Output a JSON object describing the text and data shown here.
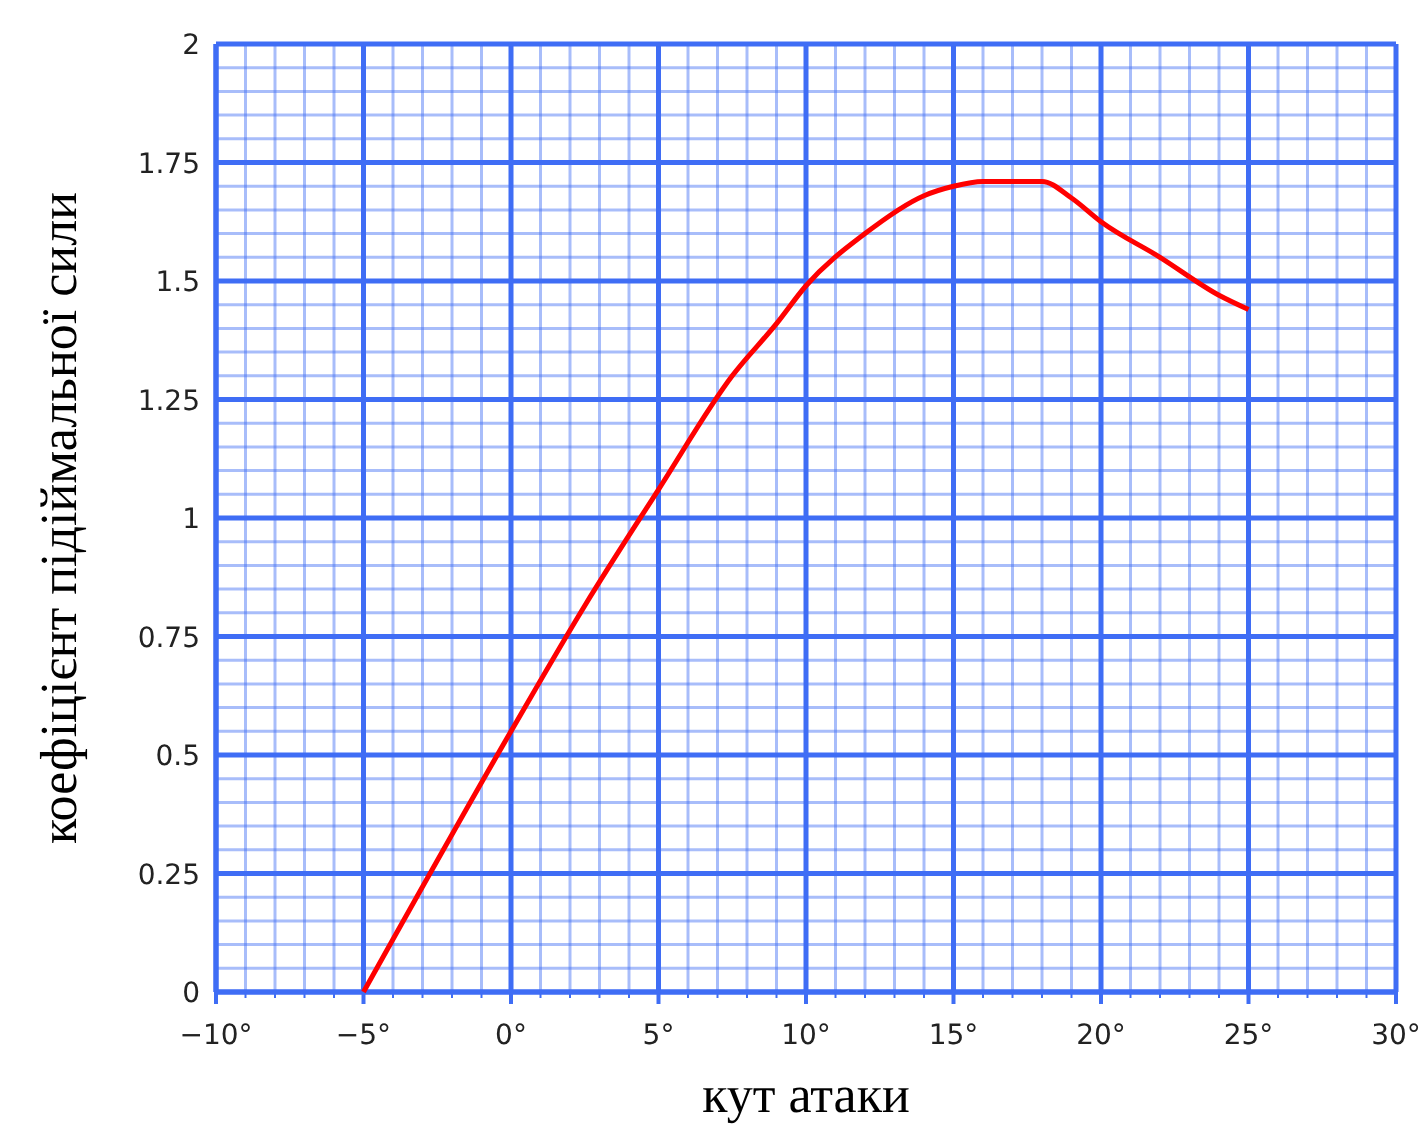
{
  "chart_data": {
    "type": "line",
    "xlabel": "кут атаки",
    "ylabel": "коефіцієнт підіймальної сили",
    "x": [
      -5,
      0,
      2.5,
      5,
      7.5,
      9,
      10,
      12,
      14,
      15,
      16,
      18,
      19,
      20,
      22,
      24,
      25
    ],
    "series": [
      {
        "color": "#ff0000",
        "values": [
          0,
          0.55,
          0.815,
          1.06,
          1.3,
          1.41,
          1.49,
          1.6,
          1.68,
          1.7,
          1.71,
          1.71,
          1.675,
          1.625,
          1.55,
          1.47,
          1.44
        ]
      }
    ],
    "xlim": [
      -10,
      30
    ],
    "ylim": [
      0,
      2
    ],
    "xticks": [
      {
        "value": -10,
        "label": "−10°"
      },
      {
        "value": -9,
        "label": null
      },
      {
        "value": -8,
        "label": null
      },
      {
        "value": -7,
        "label": null
      },
      {
        "value": -6,
        "label": null
      },
      {
        "value": -5,
        "label": "−5°"
      },
      {
        "value": -4,
        "label": null
      },
      {
        "value": -3,
        "label": null
      },
      {
        "value": -2,
        "label": null
      },
      {
        "value": -1,
        "label": null
      },
      {
        "value": 0,
        "label": "0°"
      },
      {
        "value": 1,
        "label": null
      },
      {
        "value": 2,
        "label": null
      },
      {
        "value": 3,
        "label": null
      },
      {
        "value": 4,
        "label": null
      },
      {
        "value": 5,
        "label": "5°"
      },
      {
        "value": 6,
        "label": null
      },
      {
        "value": 7,
        "label": null
      },
      {
        "value": 8,
        "label": null
      },
      {
        "value": 9,
        "label": null
      },
      {
        "value": 10,
        "label": "10°"
      },
      {
        "value": 11,
        "label": null
      },
      {
        "value": 12,
        "label": null
      },
      {
        "value": 13,
        "label": null
      },
      {
        "value": 14,
        "label": null
      },
      {
        "value": 15,
        "label": "15°"
      },
      {
        "value": 16,
        "label": null
      },
      {
        "value": 17,
        "label": null
      },
      {
        "value": 18,
        "label": null
      },
      {
        "value": 19,
        "label": null
      },
      {
        "value": 20,
        "label": "20°"
      },
      {
        "value": 21,
        "label": null
      },
      {
        "value": 22,
        "label": null
      },
      {
        "value": 23,
        "label": null
      },
      {
        "value": 24,
        "label": null
      },
      {
        "value": 25,
        "label": "25°"
      },
      {
        "value": 26,
        "label": null
      },
      {
        "value": 27,
        "label": null
      },
      {
        "value": 28,
        "label": null
      },
      {
        "value": 29,
        "label": null
      },
      {
        "value": 30,
        "label": "30°"
      }
    ],
    "yticks": [
      0,
      {
        "value": 0.05,
        "label": null
      },
      {
        "value": 0.1,
        "label": null
      },
      {
        "value": 0.15,
        "label": null
      },
      {
        "value": 0.2,
        "label": null
      },
      0.25,
      {
        "value": 0.3,
        "label": null
      },
      {
        "value": 0.35,
        "label": null
      },
      {
        "value": 0.4,
        "label": null
      },
      {
        "value": 0.45,
        "label": null
      },
      0.5,
      {
        "value": 0.55,
        "label": null
      },
      {
        "value": 0.6,
        "label": null
      },
      {
        "value": 0.65,
        "label": null
      },
      {
        "value": 0.7,
        "label": null
      },
      0.75,
      {
        "value": 0.8,
        "label": null
      },
      {
        "value": 0.85,
        "label": null
      },
      {
        "value": 0.9,
        "label": null
      },
      {
        "value": 0.95,
        "label": null
      },
      1,
      {
        "value": 1.05,
        "label": null
      },
      {
        "value": 1.1,
        "label": null
      },
      {
        "value": 1.15,
        "label": null
      },
      {
        "value": 1.2,
        "label": null
      },
      1.25,
      {
        "value": 1.3,
        "label": null
      },
      {
        "value": 1.35,
        "label": null
      },
      {
        "value": 1.4,
        "label": null
      },
      {
        "value": 1.45,
        "label": null
      },
      1.5,
      {
        "value": 1.55,
        "label": null
      },
      {
        "value": 1.6,
        "label": null
      },
      {
        "value": 1.65,
        "label": null
      },
      {
        "value": 1.7,
        "label": null
      },
      1.75,
      {
        "value": 1.8,
        "label": null
      },
      {
        "value": 1.85,
        "label": null
      },
      {
        "value": 1.9,
        "label": null
      },
      {
        "value": 1.95,
        "label": null
      },
      2
    ],
    "grid": true,
    "marker": "none",
    "line_style": "solid"
  }
}
